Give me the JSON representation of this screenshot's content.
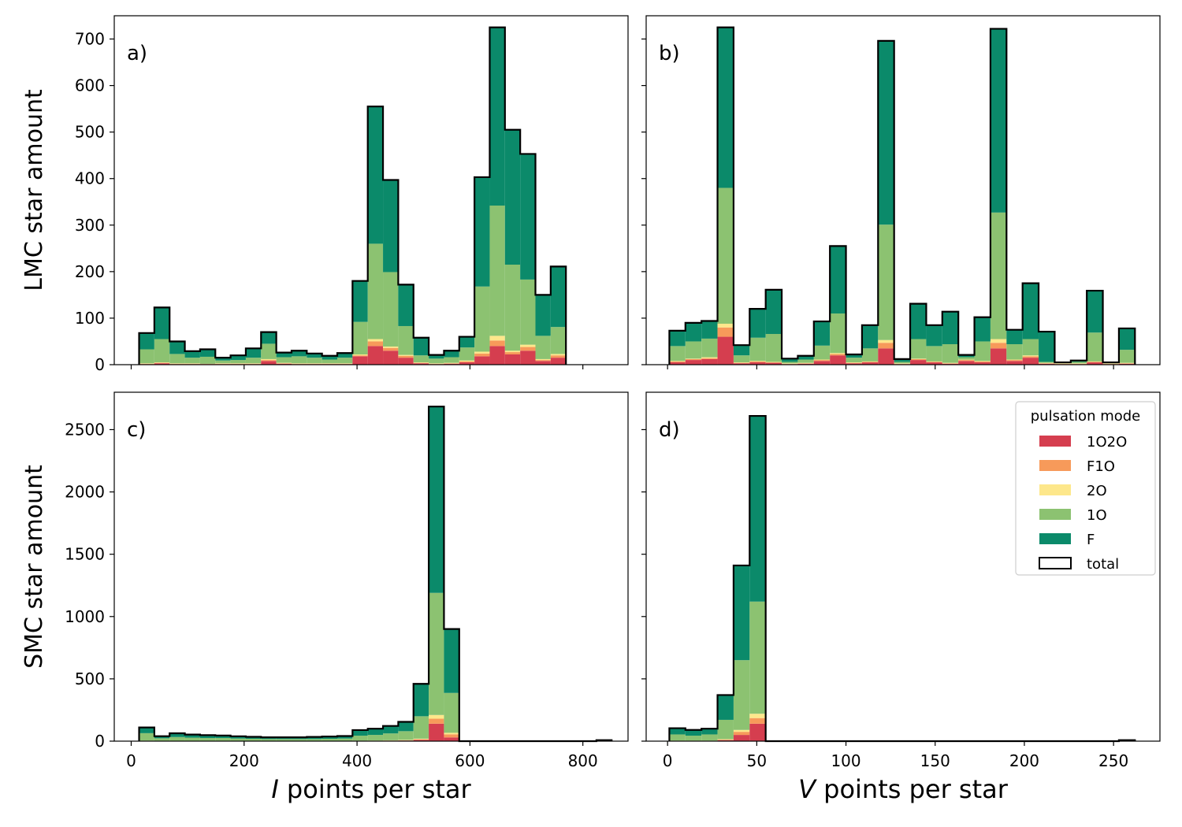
{
  "colors": {
    "1O2O": "#d53e4f",
    "F1O": "#f79a5a",
    "2O": "#fde78b",
    "1O": "#8cc271",
    "F": "#0b8a6a",
    "total": "#000000"
  },
  "legend": {
    "title": "pulsation mode",
    "entries": [
      "1O2O",
      "F1O",
      "2O",
      "1O",
      "F",
      "total"
    ],
    "placement": "upper-right of panel d"
  },
  "chart_data": [
    {
      "type": "bar",
      "stacked": true,
      "panel_label": "a)",
      "ylabel": "LMC star amount",
      "xlabel": "",
      "bin_start": 14,
      "bin_width": 27,
      "xlim": [
        -30,
        880
      ],
      "ylim": [
        0,
        750
      ],
      "xticks": [
        0,
        200,
        400,
        600,
        800
      ],
      "yticks": [
        0,
        100,
        200,
        300,
        400,
        500,
        600,
        700
      ],
      "show_xtick_labels": false,
      "series": [
        {
          "name": "1O2O",
          "values": [
            1,
            3,
            1,
            1,
            1,
            1,
            1,
            1,
            8,
            2,
            1,
            1,
            1,
            1,
            18,
            40,
            30,
            15,
            3,
            1,
            2,
            5,
            18,
            40,
            22,
            30,
            8,
            15
          ]
        },
        {
          "name": "F1O",
          "values": [
            1,
            1,
            1,
            1,
            1,
            1,
            1,
            1,
            2,
            1,
            1,
            1,
            1,
            1,
            2,
            10,
            6,
            4,
            1,
            1,
            1,
            2,
            6,
            12,
            5,
            8,
            2,
            5
          ]
        },
        {
          "name": "2O",
          "values": [
            1,
            1,
            1,
            1,
            0,
            1,
            1,
            1,
            2,
            1,
            1,
            1,
            1,
            1,
            2,
            5,
            3,
            2,
            1,
            1,
            1,
            2,
            4,
            10,
            3,
            5,
            2,
            3
          ]
        },
        {
          "name": "1O",
          "values": [
            30,
            50,
            20,
            12,
            15,
            6,
            7,
            12,
            33,
            12,
            15,
            12,
            8,
            12,
            70,
            205,
            160,
            62,
            15,
            10,
            12,
            28,
            140,
            280,
            185,
            140,
            50,
            58
          ]
        },
        {
          "name": "F",
          "values": [
            35,
            68,
            27,
            14,
            16,
            6,
            10,
            20,
            25,
            10,
            12,
            9,
            8,
            10,
            88,
            295,
            198,
            89,
            38,
            8,
            15,
            23,
            235,
            383,
            290,
            270,
            88,
            130
          ]
        }
      ],
      "total": [
        68,
        123,
        50,
        29,
        33,
        15,
        20,
        35,
        70,
        26,
        30,
        24,
        19,
        25,
        180,
        555,
        397,
        172,
        58,
        21,
        30,
        60,
        403,
        725,
        505,
        453,
        150,
        211
      ]
    },
    {
      "type": "bar",
      "stacked": true,
      "panel_label": "b)",
      "ylabel": "",
      "xlabel": "",
      "bin_start": 1,
      "bin_width": 9,
      "xlim": [
        -12,
        276
      ],
      "ylim": [
        0,
        750
      ],
      "xticks": [
        0,
        50,
        100,
        150,
        200,
        250
      ],
      "yticks": [
        0,
        100,
        200,
        300,
        400,
        500,
        600,
        700
      ],
      "show_xtick_labels": false,
      "show_ytick_labels": false,
      "series": [
        {
          "name": "1O2O",
          "values": [
            5,
            10,
            12,
            60,
            3,
            5,
            4,
            1,
            2,
            8,
            20,
            3,
            5,
            35,
            1,
            10,
            5,
            2,
            8,
            5,
            35,
            8,
            15,
            2,
            1,
            1,
            5,
            1,
            2
          ]
        },
        {
          "name": "F1O",
          "values": [
            2,
            2,
            2,
            20,
            1,
            2,
            1,
            1,
            1,
            2,
            3,
            1,
            1,
            12,
            1,
            2,
            1,
            1,
            2,
            2,
            12,
            2,
            3,
            1,
            1,
            1,
            1,
            1,
            1
          ]
        },
        {
          "name": "2O",
          "values": [
            1,
            1,
            2,
            8,
            1,
            1,
            1,
            1,
            1,
            1,
            2,
            1,
            1,
            6,
            1,
            1,
            1,
            1,
            1,
            1,
            8,
            1,
            2,
            1,
            1,
            1,
            1,
            1,
            1
          ]
        },
        {
          "name": "1O",
          "values": [
            32,
            37,
            40,
            292,
            15,
            50,
            60,
            3,
            7,
            30,
            85,
            10,
            28,
            248,
            3,
            42,
            33,
            40,
            5,
            42,
            272,
            33,
            35,
            2,
            1,
            3,
            62,
            1,
            28
          ]
        },
        {
          "name": "F",
          "values": [
            33,
            40,
            38,
            345,
            22,
            62,
            95,
            7,
            8,
            52,
            145,
            7,
            50,
            395,
            6,
            76,
            45,
            70,
            5,
            52,
            395,
            31,
            120,
            65,
            1,
            3,
            90,
            1,
            46
          ]
        }
      ],
      "total": [
        73,
        90,
        94,
        725,
        42,
        120,
        161,
        13,
        19,
        93,
        255,
        22,
        85,
        696,
        12,
        131,
        85,
        114,
        21,
        102,
        722,
        75,
        175,
        71,
        5,
        9,
        159,
        5,
        78
      ]
    },
    {
      "type": "bar",
      "stacked": true,
      "panel_label": "c)",
      "ylabel": "SMC star amount",
      "xlabel": "I points per star",
      "bin_start": 14,
      "bin_width": 27,
      "xlim": [
        -30,
        880
      ],
      "ylim": [
        0,
        2800
      ],
      "xticks": [
        0,
        200,
        400,
        600,
        800
      ],
      "yticks": [
        0,
        500,
        1000,
        1500,
        2000,
        2500
      ],
      "show_xtick_labels": true,
      "series": [
        {
          "name": "1O2O",
          "values": [
            2,
            1,
            1,
            1,
            1,
            1,
            1,
            1,
            1,
            1,
            1,
            1,
            1,
            1,
            2,
            2,
            3,
            5,
            10,
            140,
            30,
            0,
            0,
            0,
            0,
            0,
            0,
            0,
            0,
            0,
            0
          ]
        },
        {
          "name": "F1O",
          "values": [
            1,
            1,
            1,
            1,
            1,
            1,
            1,
            1,
            1,
            1,
            1,
            1,
            1,
            1,
            1,
            1,
            2,
            2,
            5,
            40,
            25,
            0,
            0,
            0,
            0,
            0,
            0,
            0,
            0,
            0,
            0
          ]
        },
        {
          "name": "2O",
          "values": [
            1,
            1,
            1,
            1,
            1,
            1,
            1,
            1,
            1,
            1,
            1,
            1,
            1,
            1,
            1,
            2,
            2,
            3,
            5,
            30,
            12,
            0,
            0,
            0,
            0,
            0,
            0,
            0,
            0,
            0,
            0
          ]
        },
        {
          "name": "1O",
          "values": [
            60,
            20,
            30,
            25,
            22,
            22,
            18,
            16,
            14,
            14,
            14,
            14,
            16,
            18,
            40,
            45,
            55,
            70,
            180,
            980,
            320,
            0,
            0,
            0,
            0,
            0,
            0,
            0,
            0,
            0,
            0
          ]
        },
        {
          "name": "F",
          "values": [
            46,
            17,
            30,
            25,
            23,
            20,
            18,
            16,
            14,
            14,
            14,
            17,
            18,
            20,
            45,
            50,
            60,
            75,
            260,
            1495,
            513,
            0,
            0,
            0,
            0,
            0,
            0,
            0,
            0,
            0,
            8
          ]
        }
      ],
      "total": [
        110,
        40,
        63,
        53,
        48,
        45,
        39,
        35,
        31,
        31,
        31,
        34,
        37,
        41,
        89,
        100,
        122,
        155,
        460,
        2685,
        900,
        0,
        0,
        0,
        0,
        0,
        0,
        0,
        0,
        0,
        8
      ]
    },
    {
      "type": "bar",
      "stacked": true,
      "panel_label": "d)",
      "ylabel": "",
      "xlabel": "V points per star",
      "bin_start": 1,
      "bin_width": 9,
      "xlim": [
        -12,
        276
      ],
      "ylim": [
        0,
        2800
      ],
      "xticks": [
        0,
        50,
        100,
        150,
        200,
        250
      ],
      "yticks": [
        0,
        500,
        1000,
        1500,
        2000,
        2500
      ],
      "show_xtick_labels": true,
      "show_ytick_labels": false,
      "series": [
        {
          "name": "1O2O",
          "values": [
            2,
            2,
            2,
            8,
            50,
            140,
            0,
            0,
            0,
            0,
            0,
            0,
            0,
            0,
            0,
            0,
            0,
            0,
            0,
            0,
            0,
            0,
            0,
            0,
            0,
            0,
            0,
            0,
            0
          ]
        },
        {
          "name": "F1O",
          "values": [
            1,
            1,
            1,
            4,
            25,
            45,
            0,
            0,
            0,
            0,
            0,
            0,
            0,
            0,
            0,
            0,
            0,
            0,
            0,
            0,
            0,
            0,
            0,
            0,
            0,
            0,
            0,
            0,
            0
          ]
        },
        {
          "name": "2O",
          "values": [
            1,
            1,
            1,
            4,
            15,
            35,
            0,
            0,
            0,
            0,
            0,
            0,
            0,
            0,
            0,
            0,
            0,
            0,
            0,
            0,
            0,
            0,
            0,
            0,
            0,
            0,
            0,
            0,
            0
          ]
        },
        {
          "name": "1O",
          "values": [
            50,
            40,
            50,
            155,
            560,
            900,
            0,
            0,
            0,
            0,
            0,
            0,
            0,
            0,
            0,
            0,
            0,
            0,
            0,
            0,
            0,
            0,
            0,
            0,
            0,
            0,
            0,
            0,
            0
          ]
        },
        {
          "name": "F",
          "values": [
            50,
            46,
            46,
            199,
            760,
            1490,
            0,
            0,
            0,
            0,
            0,
            0,
            0,
            0,
            0,
            0,
            0,
            0,
            0,
            0,
            0,
            0,
            0,
            0,
            0,
            0,
            0,
            0,
            8
          ]
        }
      ],
      "total": [
        104,
        90,
        100,
        370,
        1410,
        2610,
        0,
        0,
        0,
        0,
        0,
        0,
        0,
        0,
        0,
        0,
        0,
        0,
        0,
        0,
        0,
        0,
        0,
        0,
        0,
        0,
        0,
        0,
        8
      ]
    }
  ]
}
